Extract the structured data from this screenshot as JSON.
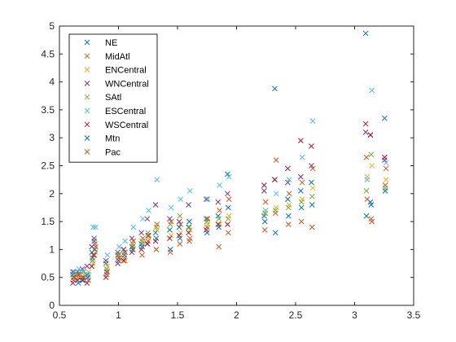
{
  "chart_data": {
    "type": "scatter",
    "marker": "x",
    "xlim": [
      0.5,
      3.5
    ],
    "ylim": [
      0,
      5
    ],
    "xticks": [
      "0.5",
      "1",
      "1.5",
      "2",
      "2.5",
      "3",
      "3.5"
    ],
    "yticks": [
      "0",
      "0.5",
      "1",
      "1.5",
      "2",
      "2.5",
      "3",
      "3.5",
      "4",
      "4.5",
      "5"
    ],
    "grid": false,
    "legend_position": "top-left",
    "x_clusters": [
      0.62,
      0.66,
      0.7,
      0.74,
      0.78,
      0.8,
      0.9,
      1.0,
      1.05,
      1.12,
      1.2,
      1.25,
      1.32,
      1.44,
      1.52,
      1.6,
      1.75,
      1.85,
      1.93,
      2.24,
      2.33,
      2.44,
      2.55,
      2.64,
      3.1,
      3.14,
      3.26
    ],
    "series": [
      {
        "name": "NE",
        "color": "#0072BD",
        "values": [
          0.55,
          0.6,
          0.5,
          0.55,
          0.95,
          1.15,
          0.75,
          0.9,
          1.0,
          1.05,
          1.1,
          1.1,
          1.3,
          1.35,
          1.4,
          1.4,
          1.55,
          1.6,
          2.35,
          1.6,
          3.88,
          1.9,
          2.05,
          2.2,
          4.87,
          1.85,
          3.35
        ]
      },
      {
        "name": "MidAtl",
        "color": "#D95319",
        "values": [
          0.45,
          0.5,
          0.5,
          0.5,
          0.8,
          1.1,
          0.55,
          0.85,
          0.85,
          1.05,
          0.9,
          1.15,
          1.0,
          0.95,
          1.1,
          1.15,
          1.4,
          1.05,
          1.3,
          1.35,
          1.65,
          1.45,
          1.5,
          1.4,
          2.65,
          1.55,
          2.15
        ]
      },
      {
        "name": "ENCentral",
        "color": "#EDB120",
        "values": [
          0.55,
          0.5,
          0.55,
          0.6,
          0.75,
          0.95,
          0.7,
          0.9,
          0.8,
          1.0,
          1.1,
          1.2,
          1.35,
          1.25,
          1.3,
          1.35,
          1.45,
          1.45,
          1.6,
          1.65,
          1.75,
          1.8,
          1.9,
          2.1,
          2.3,
          2.5,
          2.25
        ]
      },
      {
        "name": "WNCentral",
        "color": "#7E2F8E",
        "values": [
          0.6,
          0.55,
          0.65,
          0.7,
          1.05,
          1.2,
          0.8,
          0.95,
          1.0,
          1.2,
          1.3,
          1.55,
          1.8,
          1.55,
          1.5,
          1.8,
          1.9,
          1.85,
          2.0,
          2.05,
          2.25,
          2.2,
          2.3,
          2.5,
          3.1,
          3.05,
          2.6
        ]
      },
      {
        "name": "SAtl",
        "color": "#77AC30",
        "values": [
          0.5,
          0.55,
          0.6,
          0.5,
          0.8,
          1.0,
          0.65,
          0.9,
          0.95,
          1.1,
          1.15,
          1.3,
          1.4,
          1.45,
          1.6,
          1.4,
          1.5,
          1.55,
          1.55,
          1.65,
          1.7,
          1.75,
          1.85,
          1.95,
          2.05,
          2.7,
          2.1
        ]
      },
      {
        "name": "ESCentral",
        "color": "#4DBEEE",
        "values": [
          0.6,
          0.65,
          0.6,
          0.55,
          1.4,
          1.4,
          0.9,
          1.05,
          1.15,
          1.4,
          1.55,
          1.7,
          2.25,
          1.75,
          1.9,
          2.05,
          1.9,
          2.15,
          2.3,
          1.7,
          2.0,
          2.25,
          2.65,
          3.3,
          2.25,
          3.85,
          2.55
        ]
      },
      {
        "name": "WSCentral",
        "color": "#A2142F",
        "values": [
          0.4,
          0.45,
          0.45,
          0.4,
          0.7,
          0.9,
          0.5,
          0.75,
          0.8,
          0.95,
          1.0,
          1.1,
          1.15,
          1.2,
          1.25,
          1.3,
          1.35,
          1.45,
          1.45,
          2.15,
          2.25,
          2.45,
          2.95,
          2.85,
          3.25,
          3.05,
          2.65
        ]
      },
      {
        "name": "Mtn",
        "color": "#0072BD",
        "values": [
          0.5,
          0.4,
          0.45,
          0.5,
          0.85,
          1.0,
          0.6,
          0.8,
          0.9,
          1.0,
          1.05,
          1.25,
          1.2,
          1.0,
          1.2,
          1.5,
          1.3,
          1.4,
          1.75,
          1.5,
          1.3,
          1.6,
          1.75,
          1.8,
          1.6,
          1.8,
          2.05
        ]
      },
      {
        "name": "Pac",
        "color": "#D95319",
        "values": [
          0.5,
          0.55,
          0.5,
          0.45,
          0.9,
          1.05,
          0.6,
          0.85,
          0.95,
          1.15,
          1.2,
          1.25,
          1.45,
          1.5,
          1.45,
          1.2,
          1.55,
          1.7,
          1.9,
          1.85,
          2.6,
          2.0,
          2.2,
          2.45,
          1.9,
          1.5,
          2.45
        ]
      }
    ]
  }
}
